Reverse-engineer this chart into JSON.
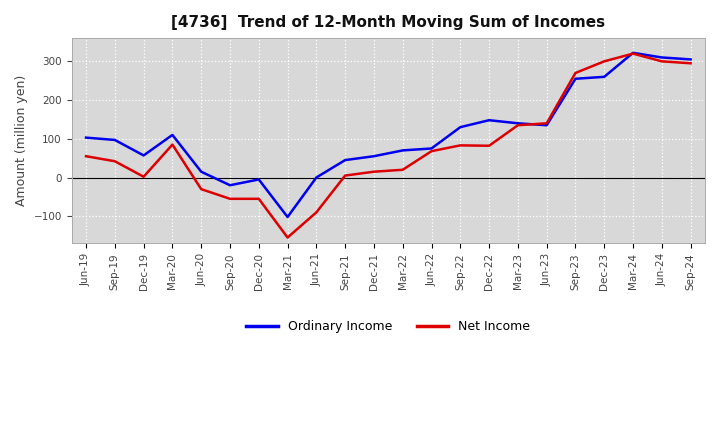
{
  "title": "[4736]  Trend of 12-Month Moving Sum of Incomes",
  "ylabel": "Amount (million yen)",
  "background_color": "#ffffff",
  "plot_bg_color": "#d8d8d8",
  "grid_color": "#ffffff",
  "x_labels": [
    "Jun-19",
    "Sep-19",
    "Dec-19",
    "Mar-20",
    "Jun-20",
    "Sep-20",
    "Dec-20",
    "Mar-21",
    "Jun-21",
    "Sep-21",
    "Dec-21",
    "Mar-22",
    "Jun-22",
    "Sep-22",
    "Dec-22",
    "Mar-23",
    "Jun-23",
    "Sep-23",
    "Dec-23",
    "Mar-24",
    "Jun-24",
    "Sep-24"
  ],
  "ordinary_income": [
    103,
    97,
    57,
    110,
    15,
    -20,
    -5,
    -102,
    0,
    45,
    55,
    70,
    75,
    130,
    148,
    140,
    135,
    255,
    260,
    322,
    310,
    305
  ],
  "net_income": [
    55,
    42,
    2,
    85,
    -30,
    -55,
    -55,
    -155,
    -90,
    5,
    15,
    20,
    68,
    83,
    82,
    135,
    140,
    270,
    300,
    320,
    300,
    295
  ],
  "ordinary_color": "#0000ee",
  "net_color": "#dd0000",
  "ylim": [
    -170,
    360
  ],
  "yticks": [
    -100,
    0,
    100,
    200,
    300
  ],
  "line_width": 1.8,
  "title_fontsize": 11,
  "tick_fontsize": 7.5,
  "ylabel_fontsize": 9
}
